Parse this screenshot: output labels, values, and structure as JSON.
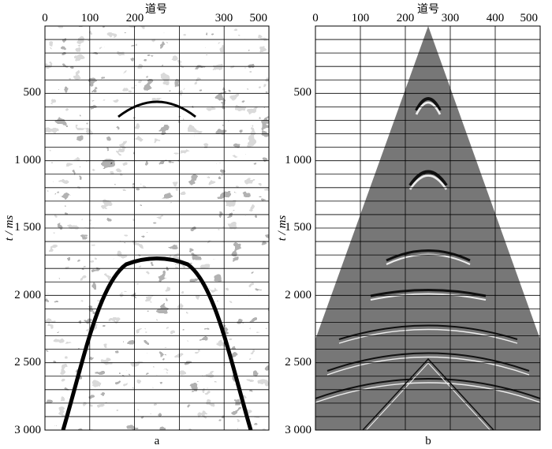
{
  "figure": {
    "x_axis_label": "道号",
    "y_axis_label": "t / ms",
    "x_ticks": [
      "0",
      "100",
      "200",
      "300",
      "400",
      "500"
    ],
    "y_ticks": [
      "500",
      "1 000",
      "1 500",
      "2 000",
      "2 500",
      "3 000"
    ],
    "panels": [
      {
        "caption": "a"
      },
      {
        "caption": "b"
      }
    ]
  },
  "chart_data": [
    {
      "type": "heatmap",
      "title": "",
      "xlabel": "道号",
      "ylabel": "t / ms",
      "xlim": [
        0,
        500
      ],
      "ylim": [
        0,
        3000
      ],
      "y_inverted": true,
      "grid": true,
      "caption": "a"
    },
    {
      "type": "heatmap",
      "title": "",
      "xlabel": "道号",
      "ylabel": "t / ms",
      "xlim": [
        0,
        500
      ],
      "ylim": [
        0,
        3000
      ],
      "y_inverted": true,
      "grid": true,
      "caption": "b"
    }
  ]
}
